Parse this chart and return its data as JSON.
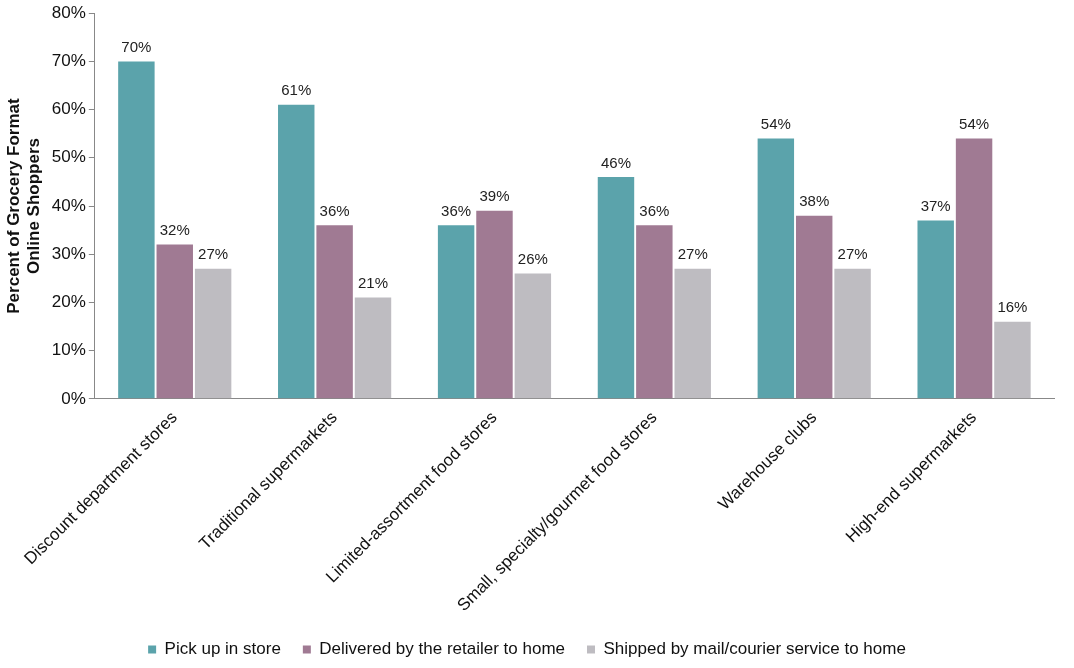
{
  "chart_data": {
    "type": "bar",
    "ylabel": "Percent of Grocery Format\nOnline Shoppers",
    "categories": [
      "Discount department stores",
      "Traditional supermarkets",
      "Limited-assortment food stores",
      "Small, specialty/gourmet food stores",
      "Warehouse clubs",
      "High-end supermarkets"
    ],
    "series": [
      {
        "name": "Pick up in store",
        "color": "#5ba3ab",
        "values": [
          70,
          61,
          36,
          46,
          54,
          37
        ],
        "value_labels": [
          "70%",
          "61%",
          "36%",
          "46%",
          "54%",
          "37%"
        ]
      },
      {
        "name": "Delivered by the retailer to home",
        "color": "#a07a93",
        "values": [
          32,
          36,
          39,
          36,
          38,
          54
        ],
        "value_labels": [
          "32%",
          "36%",
          "39%",
          "36%",
          "38%",
          "54%"
        ]
      },
      {
        "name": "Shipped by mail/courier service to home",
        "color": "#bebcc1",
        "values": [
          27,
          21,
          26,
          27,
          27,
          16
        ],
        "value_labels": [
          "27%",
          "21%",
          "26%",
          "27%",
          "27%",
          "16%"
        ]
      }
    ],
    "ylim": [
      0,
      80
    ],
    "yticks": [
      {
        "value": 0,
        "label": "0%"
      },
      {
        "value": 10,
        "label": "10%"
      },
      {
        "value": 20,
        "label": "20%"
      },
      {
        "value": 30,
        "label": "30%"
      },
      {
        "value": 40,
        "label": "40%"
      },
      {
        "value": 50,
        "label": "50%"
      },
      {
        "value": 60,
        "label": "60%"
      },
      {
        "value": 70,
        "label": "70%"
      },
      {
        "value": 80,
        "label": "80%"
      }
    ],
    "grid": false,
    "legend": "bottom"
  }
}
